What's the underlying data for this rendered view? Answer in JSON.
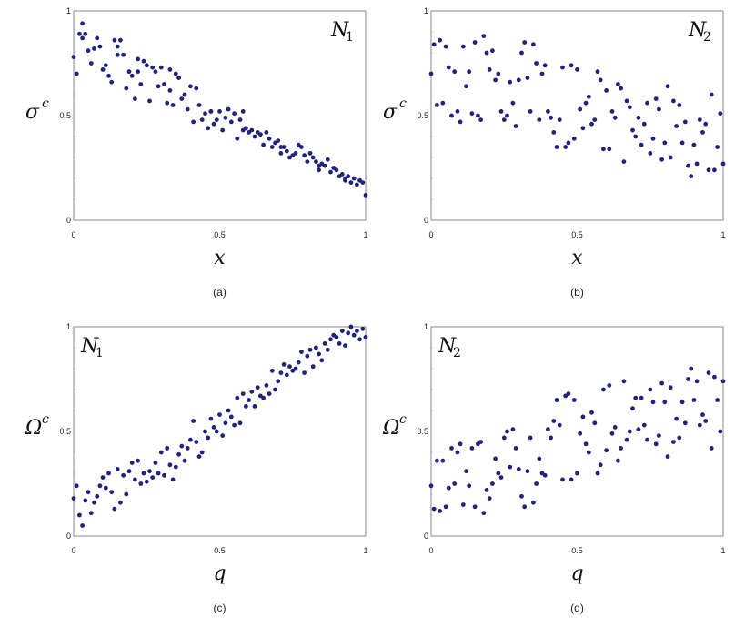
{
  "chart_data": [
    {
      "type": "scatter",
      "caption": "(a)",
      "annotation": {
        "main": "N",
        "sub": "1"
      },
      "xlabel": "x",
      "ylabel": {
        "main": "σ",
        "sup": "c"
      },
      "xlim": [
        0,
        1
      ],
      "ylim": [
        0,
        1
      ],
      "xticks": [
        "0",
        "0.5",
        "1"
      ],
      "yticks": [
        "0",
        "0.5",
        "1"
      ],
      "marker_color": "#1f237a",
      "x": [
        0.0,
        0.01,
        0.02,
        0.03,
        0.04,
        0.05,
        0.06,
        0.07,
        0.08,
        0.09,
        0.1,
        0.11,
        0.12,
        0.13,
        0.14,
        0.15,
        0.16,
        0.17,
        0.18,
        0.19,
        0.2,
        0.21,
        0.22,
        0.23,
        0.24,
        0.25,
        0.26,
        0.27,
        0.28,
        0.29,
        0.3,
        0.31,
        0.32,
        0.33,
        0.34,
        0.35,
        0.36,
        0.37,
        0.38,
        0.39,
        0.4,
        0.41,
        0.42,
        0.43,
        0.44,
        0.45,
        0.46,
        0.47,
        0.48,
        0.49,
        0.5,
        0.51,
        0.52,
        0.53,
        0.54,
        0.55,
        0.56,
        0.57,
        0.58,
        0.59,
        0.6,
        0.61,
        0.62,
        0.63,
        0.64,
        0.65,
        0.66,
        0.67,
        0.68,
        0.69,
        0.7,
        0.71,
        0.72,
        0.73,
        0.74,
        0.75,
        0.76,
        0.77,
        0.78,
        0.79,
        0.8,
        0.81,
        0.82,
        0.83,
        0.84,
        0.85,
        0.86,
        0.87,
        0.88,
        0.89,
        0.9,
        0.91,
        0.92,
        0.93,
        0.94,
        0.95,
        0.96,
        0.97,
        0.98,
        0.99,
        1.0,
        0.03,
        0.15,
        0.22,
        0.33,
        0.47,
        0.58,
        0.71,
        0.84,
        0.93
      ],
      "y": [
        0.78,
        0.7,
        0.89,
        0.94,
        0.89,
        0.81,
        0.75,
        0.82,
        0.87,
        0.83,
        0.72,
        0.74,
        0.69,
        0.66,
        0.86,
        0.83,
        0.86,
        0.79,
        0.63,
        0.71,
        0.69,
        0.58,
        0.77,
        0.65,
        0.76,
        0.74,
        0.57,
        0.73,
        0.71,
        0.64,
        0.73,
        0.65,
        0.56,
        0.72,
        0.55,
        0.7,
        0.68,
        0.58,
        0.6,
        0.53,
        0.64,
        0.47,
        0.63,
        0.55,
        0.48,
        0.51,
        0.44,
        0.52,
        0.46,
        0.48,
        0.52,
        0.43,
        0.49,
        0.53,
        0.47,
        0.51,
        0.39,
        0.48,
        0.52,
        0.44,
        0.42,
        0.43,
        0.4,
        0.42,
        0.41,
        0.36,
        0.42,
        0.39,
        0.35,
        0.37,
        0.38,
        0.32,
        0.35,
        0.33,
        0.3,
        0.31,
        0.32,
        0.36,
        0.35,
        0.31,
        0.28,
        0.32,
        0.3,
        0.28,
        0.24,
        0.27,
        0.26,
        0.29,
        0.23,
        0.25,
        0.24,
        0.21,
        0.22,
        0.19,
        0.21,
        0.18,
        0.2,
        0.17,
        0.19,
        0.18,
        0.12,
        0.87,
        0.79,
        0.71,
        0.62,
        0.52,
        0.43,
        0.35,
        0.26,
        0.2
      ]
    },
    {
      "type": "scatter",
      "caption": "(b)",
      "annotation": {
        "main": "N",
        "sub": "2"
      },
      "xlabel": "x",
      "ylabel": {
        "main": "σ",
        "sup": "c"
      },
      "xlim": [
        0,
        1
      ],
      "ylim": [
        0,
        1
      ],
      "xticks": [
        "0",
        "0.5",
        "1"
      ],
      "yticks": [
        "0",
        "0.5",
        "1"
      ],
      "marker_color": "#1f237a",
      "x": [
        0.0,
        0.01,
        0.02,
        0.03,
        0.04,
        0.05,
        0.06,
        0.07,
        0.08,
        0.09,
        0.1,
        0.11,
        0.12,
        0.13,
        0.14,
        0.15,
        0.16,
        0.17,
        0.18,
        0.19,
        0.2,
        0.21,
        0.22,
        0.23,
        0.24,
        0.25,
        0.26,
        0.27,
        0.28,
        0.29,
        0.3,
        0.31,
        0.32,
        0.33,
        0.34,
        0.35,
        0.36,
        0.37,
        0.38,
        0.39,
        0.4,
        0.41,
        0.42,
        0.43,
        0.44,
        0.45,
        0.46,
        0.47,
        0.48,
        0.49,
        0.5,
        0.51,
        0.52,
        0.53,
        0.54,
        0.55,
        0.56,
        0.57,
        0.58,
        0.59,
        0.6,
        0.61,
        0.62,
        0.63,
        0.64,
        0.65,
        0.66,
        0.67,
        0.68,
        0.69,
        0.7,
        0.71,
        0.72,
        0.73,
        0.74,
        0.75,
        0.76,
        0.77,
        0.78,
        0.79,
        0.8,
        0.81,
        0.82,
        0.83,
        0.84,
        0.85,
        0.86,
        0.87,
        0.88,
        0.89,
        0.9,
        0.91,
        0.92,
        0.93,
        0.94,
        0.95,
        0.96,
        0.97,
        0.98,
        0.99,
        1.0
      ],
      "y": [
        0.7,
        0.84,
        0.55,
        0.86,
        0.56,
        0.83,
        0.73,
        0.5,
        0.71,
        0.52,
        0.47,
        0.83,
        0.64,
        0.71,
        0.51,
        0.85,
        0.5,
        0.48,
        0.88,
        0.8,
        0.72,
        0.81,
        0.67,
        0.7,
        0.52,
        0.48,
        0.5,
        0.66,
        0.56,
        0.45,
        0.67,
        0.8,
        0.85,
        0.68,
        0.52,
        0.84,
        0.75,
        0.48,
        0.7,
        0.74,
        0.52,
        0.49,
        0.42,
        0.35,
        0.48,
        0.73,
        0.35,
        0.37,
        0.74,
        0.39,
        0.72,
        0.53,
        0.44,
        0.56,
        0.59,
        0.46,
        0.48,
        0.71,
        0.67,
        0.34,
        0.62,
        0.34,
        0.52,
        0.49,
        0.65,
        0.63,
        0.28,
        0.57,
        0.54,
        0.43,
        0.4,
        0.49,
        0.36,
        0.46,
        0.56,
        0.32,
        0.39,
        0.58,
        0.53,
        0.29,
        0.37,
        0.64,
        0.3,
        0.57,
        0.45,
        0.55,
        0.37,
        0.47,
        0.26,
        0.21,
        0.36,
        0.27,
        0.48,
        0.42,
        0.46,
        0.24,
        0.6,
        0.24,
        0.35,
        0.51,
        0.27
      ]
    },
    {
      "type": "scatter",
      "caption": "(c)",
      "annotation": {
        "main": "N",
        "sub": "1"
      },
      "xlabel": "q",
      "ylabel": {
        "main": "Ω",
        "sup": "c"
      },
      "xlim": [
        0,
        1
      ],
      "ylim": [
        0,
        1
      ],
      "xticks": [
        "0",
        "0.5",
        "1"
      ],
      "yticks": [
        "0",
        "0.5",
        "1"
      ],
      "marker_color": "#1f237a",
      "x": [
        0.0,
        0.01,
        0.02,
        0.03,
        0.04,
        0.05,
        0.06,
        0.07,
        0.08,
        0.09,
        0.1,
        0.11,
        0.12,
        0.13,
        0.14,
        0.15,
        0.16,
        0.17,
        0.18,
        0.19,
        0.2,
        0.21,
        0.22,
        0.23,
        0.24,
        0.25,
        0.26,
        0.27,
        0.28,
        0.29,
        0.3,
        0.31,
        0.32,
        0.33,
        0.34,
        0.35,
        0.36,
        0.37,
        0.38,
        0.39,
        0.4,
        0.41,
        0.42,
        0.43,
        0.44,
        0.45,
        0.46,
        0.47,
        0.48,
        0.49,
        0.5,
        0.51,
        0.52,
        0.53,
        0.54,
        0.55,
        0.56,
        0.57,
        0.58,
        0.59,
        0.6,
        0.61,
        0.62,
        0.63,
        0.64,
        0.65,
        0.66,
        0.67,
        0.68,
        0.69,
        0.7,
        0.71,
        0.72,
        0.73,
        0.74,
        0.75,
        0.76,
        0.77,
        0.78,
        0.79,
        0.8,
        0.81,
        0.82,
        0.83,
        0.84,
        0.85,
        0.86,
        0.87,
        0.88,
        0.89,
        0.9,
        0.91,
        0.92,
        0.93,
        0.94,
        0.95,
        0.96,
        0.97,
        0.98,
        0.99,
        1.0
      ],
      "y": [
        0.18,
        0.24,
        0.1,
        0.05,
        0.17,
        0.21,
        0.11,
        0.16,
        0.19,
        0.24,
        0.28,
        0.23,
        0.3,
        0.21,
        0.13,
        0.32,
        0.16,
        0.29,
        0.2,
        0.31,
        0.35,
        0.27,
        0.36,
        0.25,
        0.3,
        0.26,
        0.31,
        0.28,
        0.35,
        0.3,
        0.4,
        0.29,
        0.42,
        0.34,
        0.27,
        0.33,
        0.39,
        0.43,
        0.36,
        0.42,
        0.46,
        0.55,
        0.45,
        0.38,
        0.4,
        0.5,
        0.47,
        0.56,
        0.52,
        0.5,
        0.58,
        0.48,
        0.54,
        0.6,
        0.57,
        0.53,
        0.66,
        0.54,
        0.68,
        0.62,
        0.65,
        0.69,
        0.62,
        0.71,
        0.67,
        0.66,
        0.72,
        0.68,
        0.79,
        0.7,
        0.74,
        0.78,
        0.82,
        0.77,
        0.81,
        0.79,
        0.8,
        0.83,
        0.88,
        0.78,
        0.86,
        0.89,
        0.81,
        0.9,
        0.87,
        0.84,
        0.92,
        0.89,
        0.94,
        0.96,
        0.95,
        0.92,
        0.98,
        0.91,
        0.97,
        1.0,
        0.96,
        0.98,
        0.94,
        0.99,
        0.95
      ]
    },
    {
      "type": "scatter",
      "caption": "(d)",
      "annotation": {
        "main": "N",
        "sub": "2"
      },
      "xlabel": "q",
      "ylabel": {
        "main": "Ω",
        "sup": "c"
      },
      "xlim": [
        0,
        1
      ],
      "ylim": [
        0,
        1
      ],
      "xticks": [
        "0",
        "0.5",
        "1"
      ],
      "yticks": [
        "0",
        "0.5",
        "1"
      ],
      "marker_color": "#1f237a",
      "x": [
        0.0,
        0.01,
        0.02,
        0.03,
        0.04,
        0.05,
        0.06,
        0.07,
        0.08,
        0.09,
        0.1,
        0.11,
        0.12,
        0.13,
        0.14,
        0.15,
        0.16,
        0.17,
        0.18,
        0.19,
        0.2,
        0.21,
        0.22,
        0.23,
        0.24,
        0.25,
        0.26,
        0.27,
        0.28,
        0.29,
        0.3,
        0.31,
        0.32,
        0.33,
        0.34,
        0.35,
        0.36,
        0.37,
        0.38,
        0.39,
        0.4,
        0.41,
        0.42,
        0.43,
        0.44,
        0.45,
        0.46,
        0.47,
        0.48,
        0.49,
        0.5,
        0.51,
        0.52,
        0.53,
        0.54,
        0.55,
        0.56,
        0.57,
        0.58,
        0.59,
        0.6,
        0.61,
        0.62,
        0.63,
        0.64,
        0.65,
        0.66,
        0.67,
        0.68,
        0.69,
        0.7,
        0.71,
        0.72,
        0.73,
        0.74,
        0.75,
        0.76,
        0.77,
        0.78,
        0.79,
        0.8,
        0.81,
        0.82,
        0.83,
        0.84,
        0.85,
        0.86,
        0.87,
        0.88,
        0.89,
        0.9,
        0.91,
        0.92,
        0.93,
        0.94,
        0.95,
        0.96,
        0.97,
        0.98,
        0.99,
        1.0
      ],
      "y": [
        0.24,
        0.13,
        0.36,
        0.12,
        0.36,
        0.14,
        0.23,
        0.42,
        0.25,
        0.4,
        0.44,
        0.15,
        0.31,
        0.24,
        0.42,
        0.14,
        0.44,
        0.45,
        0.11,
        0.22,
        0.18,
        0.25,
        0.37,
        0.3,
        0.28,
        0.47,
        0.5,
        0.33,
        0.51,
        0.42,
        0.32,
        0.19,
        0.14,
        0.31,
        0.47,
        0.16,
        0.25,
        0.37,
        0.3,
        0.29,
        0.51,
        0.47,
        0.55,
        0.65,
        0.53,
        0.27,
        0.67,
        0.68,
        0.27,
        0.65,
        0.3,
        0.49,
        0.57,
        0.44,
        0.4,
        0.59,
        0.54,
        0.3,
        0.34,
        0.7,
        0.41,
        0.72,
        0.49,
        0.52,
        0.36,
        0.42,
        0.74,
        0.46,
        0.5,
        0.61,
        0.66,
        0.51,
        0.66,
        0.53,
        0.46,
        0.7,
        0.64,
        0.44,
        0.48,
        0.73,
        0.64,
        0.38,
        0.71,
        0.45,
        0.56,
        0.47,
        0.64,
        0.54,
        0.75,
        0.8,
        0.65,
        0.74,
        0.53,
        0.58,
        0.55,
        0.78,
        0.42,
        0.76,
        0.65,
        0.5,
        0.74
      ]
    }
  ]
}
